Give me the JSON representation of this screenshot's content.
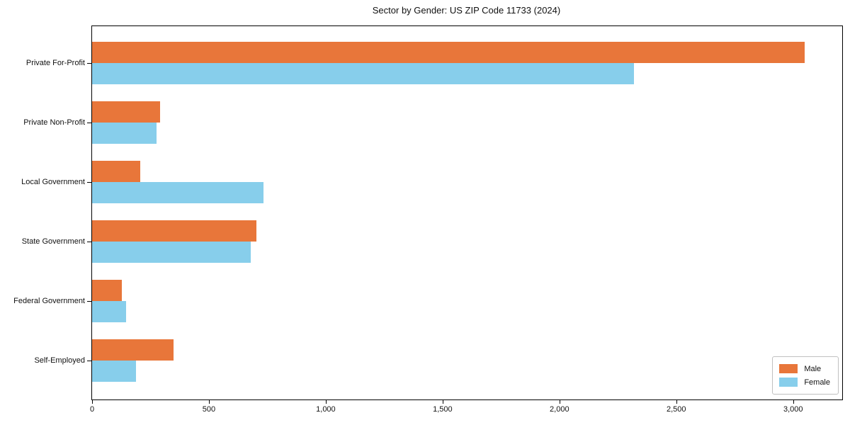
{
  "title": "Sector by Gender: US ZIP Code 11733 (2024)",
  "colors": {
    "male": "#e8763a",
    "female": "#87ceeb",
    "spine": "#000000",
    "text": "#111111",
    "legend_border": "#c0c0c0",
    "background": "#ffffff"
  },
  "chart_data": {
    "type": "bar",
    "orientation": "horizontal",
    "title": "Sector by Gender: US ZIP Code 11733 (2024)",
    "categories": [
      "Private For-Profit",
      "Private Non-Profit",
      "Local Government",
      "State Government",
      "Federal Government",
      "Self-Employed"
    ],
    "series": [
      {
        "name": "Male",
        "color": "#e8763a",
        "values": [
          3050,
          290,
          207,
          703,
          128,
          348
        ]
      },
      {
        "name": "Female",
        "color": "#87ceeb",
        "values": [
          2320,
          277,
          733,
          678,
          146,
          187
        ]
      }
    ],
    "xlabel": "",
    "ylabel": "",
    "xlim": [
      0,
      3210
    ],
    "x_ticks": [
      0,
      500,
      1000,
      1500,
      2000,
      2500,
      3000
    ],
    "x_tick_labels": [
      "0",
      "500",
      "1,000",
      "1,500",
      "2,000",
      "2,500",
      "3,000"
    ],
    "grid": false,
    "legend": {
      "position": "lower right",
      "entries": [
        "Male",
        "Female"
      ]
    }
  }
}
